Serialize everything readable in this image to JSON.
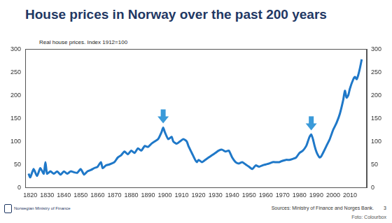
{
  "chart_data": {
    "type": "line",
    "title": "House prices in Norway over the past 200 years",
    "subtitle": "Real house prices. Index 1912=100",
    "x": [
      1819,
      1820,
      1822,
      1824,
      1826,
      1828,
      1829,
      1830,
      1832,
      1834,
      1836,
      1838,
      1840,
      1842,
      1844,
      1846,
      1848,
      1850,
      1852,
      1854,
      1856,
      1858,
      1860,
      1862,
      1863,
      1865,
      1867,
      1870,
      1872,
      1874,
      1876,
      1878,
      1880,
      1882,
      1884,
      1886,
      1888,
      1890,
      1892,
      1894,
      1896,
      1898,
      1899,
      1900,
      1902,
      1904,
      1905,
      1907,
      1909,
      1911,
      1913,
      1914,
      1916,
      1918,
      1919,
      1920,
      1922,
      1924,
      1926,
      1928,
      1930,
      1932,
      1934,
      1936,
      1938,
      1940,
      1942,
      1944,
      1946,
      1948,
      1950,
      1952,
      1954,
      1956,
      1958,
      1960,
      1962,
      1964,
      1966,
      1968,
      1970,
      1972,
      1974,
      1976,
      1978,
      1980,
      1982,
      1984,
      1985,
      1986,
      1987,
      1988,
      1989,
      1990,
      1991,
      1992,
      1993,
      1994,
      1996,
      1998,
      2000,
      2002,
      2004,
      2006,
      2007,
      2008,
      2009,
      2010,
      2012,
      2013,
      2014,
      2015,
      2016,
      2017
    ],
    "values": [
      30,
      22,
      40,
      25,
      42,
      30,
      55,
      30,
      35,
      30,
      35,
      28,
      35,
      30,
      35,
      33,
      32,
      40,
      28,
      35,
      38,
      42,
      45,
      55,
      42,
      48,
      50,
      55,
      65,
      70,
      78,
      72,
      80,
      75,
      85,
      80,
      90,
      88,
      95,
      100,
      105,
      120,
      130,
      120,
      105,
      110,
      100,
      95,
      100,
      105,
      100,
      90,
      75,
      60,
      55,
      60,
      55,
      60,
      65,
      70,
      75,
      80,
      82,
      78,
      80,
      65,
      55,
      52,
      55,
      50,
      45,
      40,
      48,
      45,
      48,
      50,
      52,
      55,
      55,
      55,
      58,
      60,
      60,
      62,
      65,
      75,
      80,
      90,
      100,
      110,
      115,
      105,
      90,
      78,
      70,
      65,
      68,
      75,
      90,
      105,
      125,
      140,
      160,
      190,
      210,
      195,
      200,
      215,
      235,
      240,
      235,
      245,
      260,
      278
    ],
    "color": "#1f78c8",
    "xlim": [
      1817,
      2020
    ],
    "xticks": [
      1820,
      1830,
      1840,
      1850,
      1860,
      1870,
      1880,
      1890,
      1900,
      1910,
      1920,
      1930,
      1940,
      1950,
      1960,
      1970,
      1980,
      1990,
      2000,
      2010
    ],
    "ylim": [
      0,
      300
    ],
    "yticks": [
      0,
      50,
      100,
      150,
      200,
      250,
      300
    ],
    "y2lim": [
      0,
      300
    ],
    "y2ticks": [
      0,
      50,
      100,
      150,
      200,
      250,
      300
    ],
    "grid": false,
    "arrow_years": [
      1899,
      1987
    ]
  },
  "footer": {
    "logo_text": "Norwegian Ministry of Finance",
    "source": "Sources: Ministry of Finance and Norges Bank.",
    "page": 3,
    "photo_credit": "Foto: Colourbox"
  }
}
